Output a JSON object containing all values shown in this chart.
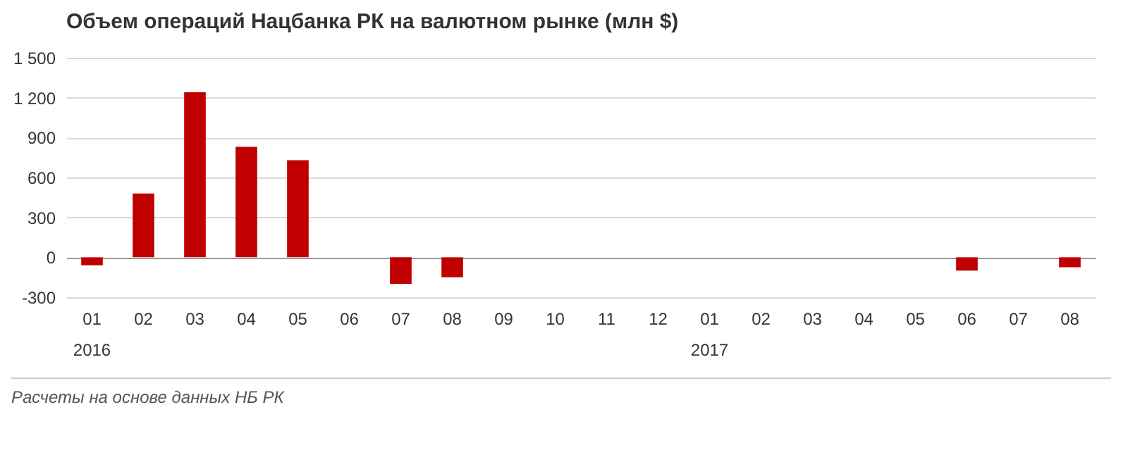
{
  "chart_data": {
    "type": "bar",
    "title": "Объем операций Нацбанка РК на валютном рынке (млн $)",
    "categories": [
      "01\n2016",
      "02",
      "03",
      "04",
      "05",
      "06",
      "07",
      "08",
      "09",
      "10",
      "11",
      "12",
      "01\n2017",
      "02",
      "03",
      "04",
      "05",
      "06",
      "07",
      "08"
    ],
    "values": [
      -60,
      480,
      1240,
      830,
      730,
      0,
      -200,
      -150,
      0,
      0,
      0,
      0,
      0,
      0,
      0,
      0,
      0,
      -100,
      0,
      -75
    ],
    "color": "#c00000",
    "ylim": [
      -300,
      1500
    ],
    "yticks": [
      {
        "value": -300,
        "label": "-300"
      },
      0,
      300,
      600,
      900,
      {
        "value": 1200,
        "label": "1 200"
      },
      {
        "value": 1500,
        "label": "1 500"
      }
    ],
    "grid": "y",
    "annotations": [
      "Расчеты на основе данных НБ РК"
    ]
  }
}
